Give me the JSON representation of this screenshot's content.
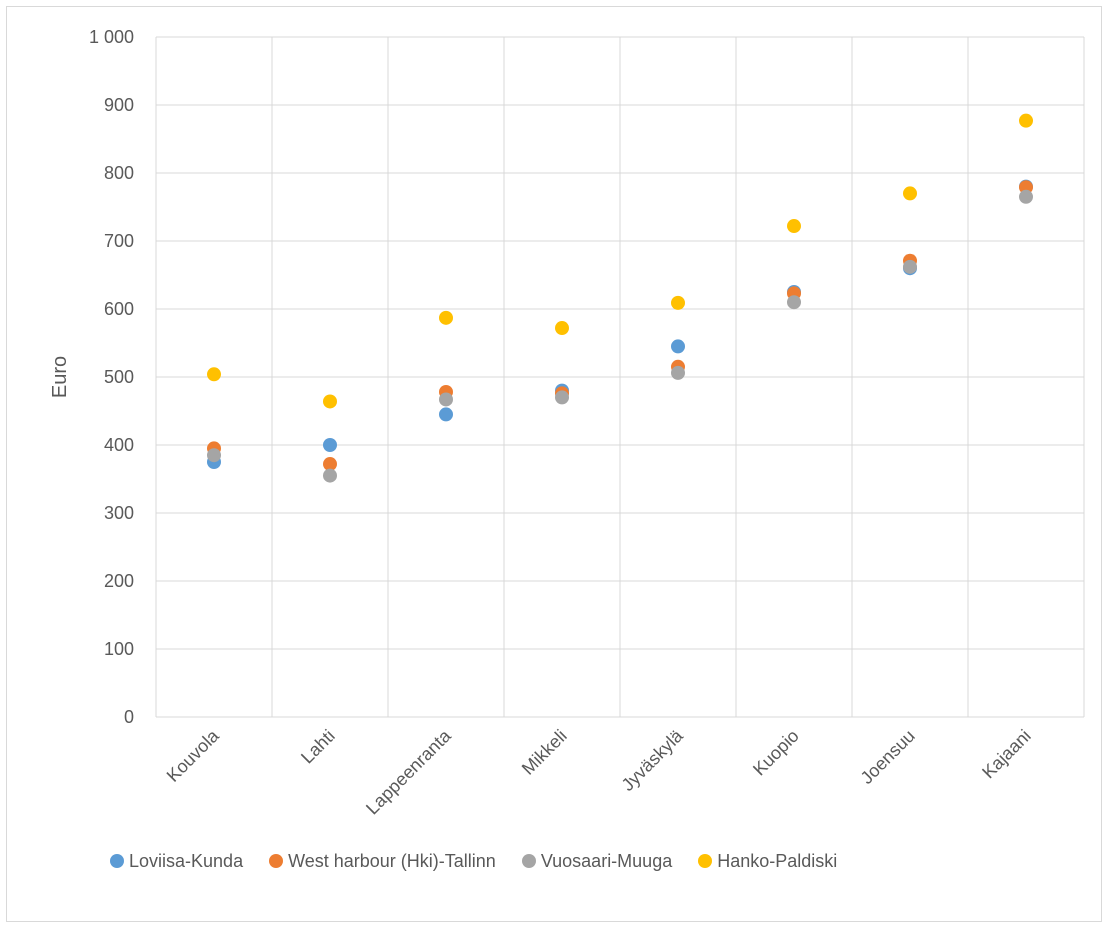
{
  "chart_data": {
    "type": "scatter",
    "title": "",
    "xlabel": "",
    "ylabel": "Euro",
    "ylim": [
      0,
      1000
    ],
    "yticks": [
      0,
      100,
      200,
      300,
      400,
      500,
      600,
      700,
      800,
      900,
      1000
    ],
    "ytick_labels": [
      "0",
      "100",
      "200",
      "300",
      "400",
      "500",
      "600",
      "700",
      "800",
      "900",
      "1 000"
    ],
    "categories": [
      "Kouvola",
      "Lahti",
      "Lappeenranta",
      "Mikkeli",
      "Jyväskylä",
      "Kuopio",
      "Joensuu",
      "Kajaani"
    ],
    "grid": true,
    "legend_position": "bottom",
    "series": [
      {
        "name": "Loviisa-Kunda",
        "color": "#5b9bd5",
        "values": [
          375,
          400,
          445,
          480,
          545,
          625,
          660,
          780
        ]
      },
      {
        "name": "West harbour (Hki)-Tallinn",
        "color": "#ed7d31",
        "values": [
          395,
          372,
          478,
          476,
          515,
          623,
          671,
          779
        ]
      },
      {
        "name": "Vuosaari-Muuga",
        "color": "#a5a5a5",
        "values": [
          385,
          355,
          467,
          470,
          506,
          610,
          662,
          765
        ]
      },
      {
        "name": "Hanko-Paldiski",
        "color": "#ffc000",
        "values": [
          504,
          464,
          587,
          572,
          609,
          722,
          770,
          877
        ]
      }
    ]
  }
}
